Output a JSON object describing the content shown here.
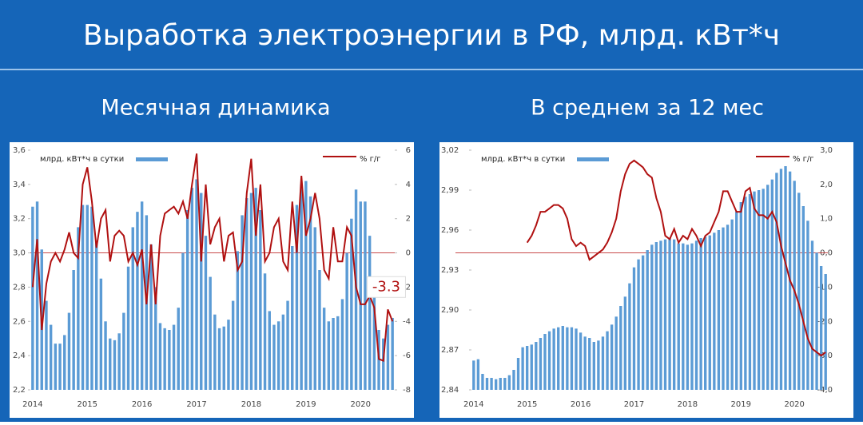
{
  "title": "Выработка электроэнергии в РФ, млрд. кВт*ч",
  "chart_data": [
    {
      "type": "bar_line",
      "subtitle": "Месячная динамика",
      "categories": [
        "2014",
        null,
        null,
        null,
        null,
        null,
        null,
        null,
        null,
        null,
        null,
        null,
        "2015",
        null,
        null,
        null,
        null,
        null,
        null,
        null,
        null,
        null,
        null,
        null,
        "2016",
        null,
        null,
        null,
        null,
        null,
        null,
        null,
        null,
        null,
        null,
        null,
        "2017",
        null,
        null,
        null,
        null,
        null,
        null,
        null,
        null,
        null,
        null,
        null,
        "2018",
        null,
        null,
        null,
        null,
        null,
        null,
        null,
        null,
        null,
        null,
        null,
        "2019",
        null,
        null,
        null,
        null,
        null,
        null,
        null,
        null,
        null,
        null,
        null,
        "2020",
        null,
        null,
        null,
        null,
        null,
        null,
        null
      ],
      "series": [
        {
          "name": "млрд. кВт*ч в сутки",
          "color": "#5b9bd5",
          "axis": "y",
          "values": [
            3.27,
            3.3,
            3.02,
            2.72,
            2.58,
            2.47,
            2.47,
            2.52,
            2.65,
            2.9,
            3.15,
            3.28,
            3.28,
            3.27,
            3.07,
            2.85,
            2.6,
            2.5,
            2.49,
            2.53,
            2.65,
            2.92,
            3.15,
            3.24,
            3.3,
            3.22,
            3.05,
            2.8,
            2.59,
            2.56,
            2.55,
            2.58,
            2.68,
            3.0,
            3.25,
            3.38,
            3.43,
            3.35,
            3.1,
            2.86,
            2.64,
            2.56,
            2.57,
            2.61,
            2.72,
            3.01,
            3.22,
            3.32,
            3.35,
            3.38,
            3.25,
            2.88,
            2.66,
            2.58,
            2.6,
            2.64,
            2.72,
            3.04,
            3.28,
            3.4,
            3.42,
            3.33,
            3.15,
            2.9,
            2.68,
            2.6,
            2.62,
            2.63,
            2.73,
            3.0,
            3.2,
            3.37,
            3.3,
            3.3,
            3.1,
            2.74,
            2.55,
            2.5,
            2.58,
            2.62
          ]
        },
        {
          "name": "% г/г",
          "color": "#b01010",
          "axis": "y2",
          "values": [
            -2.0,
            0.8,
            -4.5,
            -1.8,
            -0.5,
            0.0,
            -0.5,
            0.2,
            1.2,
            0.0,
            -0.3,
            4.0,
            5.0,
            3.0,
            0.3,
            2.0,
            2.5,
            -0.5,
            1.0,
            1.3,
            1.0,
            -0.5,
            0.0,
            -0.7,
            0.2,
            -3.0,
            0.5,
            -3.0,
            1.0,
            2.3,
            2.5,
            2.7,
            2.3,
            3.0,
            2.0,
            4.0,
            5.8,
            -0.5,
            4.0,
            0.5,
            1.5,
            2.0,
            -0.5,
            1.0,
            1.2,
            -1.0,
            -0.5,
            3.5,
            5.5,
            1.0,
            4.0,
            -0.5,
            0.0,
            1.5,
            2.0,
            -0.5,
            -1.0,
            3.0,
            0.0,
            4.5,
            1.0,
            2.0,
            3.5,
            2.0,
            -1.0,
            -1.5,
            1.5,
            -0.5,
            -0.5,
            1.5,
            1.0,
            -2.0,
            -3.0,
            -3.0,
            -2.5,
            -3.2,
            -6.2,
            -6.3,
            -3.3,
            -4.0
          ]
        }
      ],
      "annotation_index": 78,
      "ylim": [
        2.2,
        3.6
      ],
      "yticks": [
        {
          "value": 2.2,
          "label": "2,2"
        },
        {
          "value": 2.4,
          "label": "2,4"
        },
        {
          "value": 2.6,
          "label": "2,6"
        },
        {
          "value": 2.8,
          "label": "2,8"
        },
        {
          "value": 3.0,
          "label": "3,0"
        },
        {
          "value": 3.2,
          "label": "3,2"
        },
        {
          "value": 3.4,
          "label": "3,4"
        },
        {
          "value": 3.6,
          "label": "3,6"
        }
      ],
      "y2lim": [
        -8,
        6
      ],
      "y2ticks": [
        -8,
        -6,
        -4,
        -2,
        0,
        2,
        4,
        6
      ]
    },
    {
      "type": "bar_line",
      "subtitle": "В среднем за 12 мес",
      "categories": [
        "2014",
        null,
        null,
        null,
        null,
        null,
        null,
        null,
        null,
        null,
        null,
        null,
        "2015",
        null,
        null,
        null,
        null,
        null,
        null,
        null,
        null,
        null,
        null,
        null,
        "2016",
        null,
        null,
        null,
        null,
        null,
        null,
        null,
        null,
        null,
        null,
        null,
        "2017",
        null,
        null,
        null,
        null,
        null,
        null,
        null,
        null,
        null,
        null,
        null,
        "2018",
        null,
        null,
        null,
        null,
        null,
        null,
        null,
        null,
        null,
        null,
        null,
        "2019",
        null,
        null,
        null,
        null,
        null,
        null,
        null,
        null,
        null,
        null,
        null,
        "2020",
        null,
        null,
        null,
        null,
        null,
        null,
        null
      ],
      "series": [
        {
          "name": "млрд. кВт*ч в сутки",
          "color": "#5b9bd5",
          "axis": "y",
          "values": [
            2.862,
            2.863,
            2.852,
            2.849,
            2.849,
            2.848,
            2.849,
            2.849,
            2.851,
            2.855,
            2.864,
            2.872,
            2.873,
            2.874,
            2.876,
            2.879,
            2.882,
            2.884,
            2.886,
            2.887,
            2.888,
            2.887,
            2.887,
            2.886,
            2.883,
            2.88,
            2.879,
            2.876,
            2.877,
            2.88,
            2.884,
            2.889,
            2.895,
            2.903,
            2.91,
            2.92,
            2.932,
            2.938,
            2.941,
            2.945,
            2.949,
            2.951,
            2.952,
            2.953,
            2.954,
            2.953,
            2.95,
            2.95,
            2.949,
            2.95,
            2.952,
            2.954,
            2.955,
            2.956,
            2.958,
            2.96,
            2.962,
            2.964,
            2.968,
            2.974,
            2.981,
            2.985,
            2.987,
            2.989,
            2.99,
            2.991,
            2.994,
            2.998,
            3.003,
            3.006,
            3.008,
            3.004,
            2.997,
            2.988,
            2.978,
            2.967,
            2.952,
            2.943,
            2.933,
            2.927
          ]
        },
        {
          "name": "% г/г",
          "color": "#b01010",
          "axis": "y2",
          "values": [
            null,
            null,
            null,
            null,
            null,
            null,
            null,
            null,
            null,
            null,
            null,
            null,
            0.3,
            0.5,
            0.8,
            1.2,
            1.2,
            1.3,
            1.4,
            1.4,
            1.3,
            1.0,
            0.4,
            0.2,
            0.3,
            0.2,
            -0.2,
            -0.1,
            0.0,
            0.1,
            0.3,
            0.6,
            1.0,
            1.8,
            2.3,
            2.6,
            2.7,
            2.6,
            2.5,
            2.3,
            2.2,
            1.6,
            1.2,
            0.5,
            0.4,
            0.7,
            0.3,
            0.5,
            0.4,
            0.7,
            0.5,
            0.2,
            0.5,
            0.6,
            0.9,
            1.2,
            1.8,
            1.8,
            1.5,
            1.2,
            1.2,
            1.8,
            1.9,
            1.3,
            1.1,
            1.1,
            1.0,
            1.2,
            0.9,
            0.2,
            -0.3,
            -0.8,
            -1.1,
            -1.5,
            -2.0,
            -2.5,
            -2.8,
            -2.9,
            -3.0,
            -2.9
          ]
        }
      ],
      "ylim": [
        2.84,
        3.02
      ],
      "yticks": [
        {
          "value": 2.84,
          "label": "2,84"
        },
        {
          "value": 2.87,
          "label": "2,87"
        },
        {
          "value": 2.9,
          "label": "2,90"
        },
        {
          "value": 2.93,
          "label": "2,93"
        },
        {
          "value": 2.96,
          "label": "2,96"
        },
        {
          "value": 2.99,
          "label": "2,99"
        },
        {
          "value": 3.02,
          "label": "3,02"
        }
      ],
      "y2lim": [
        -4,
        3
      ],
      "y2ticks": [
        {
          "value": -4,
          "label": "-4,0"
        },
        {
          "value": -3,
          "label": "-3,0"
        },
        {
          "value": -2,
          "label": "-2,0"
        },
        {
          "value": -1,
          "label": "-1,0"
        },
        {
          "value": 0,
          "label": "0,0"
        },
        {
          "value": 1,
          "label": "1,0"
        },
        {
          "value": 2,
          "label": "2,0"
        },
        {
          "value": 3,
          "label": "3,0"
        }
      ]
    }
  ]
}
